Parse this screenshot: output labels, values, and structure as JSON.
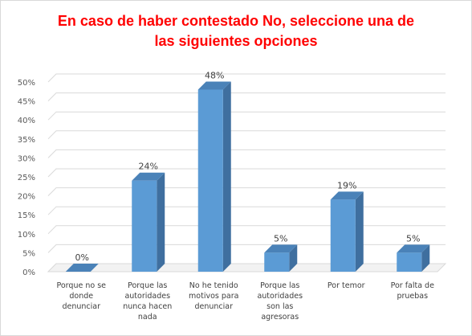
{
  "chart_data": {
    "type": "bar",
    "title": "En caso de haber contestado  No, seleccione una de\nlas siguientes opciones",
    "categories": [
      [
        "Porque no se",
        "donde",
        "denunciar"
      ],
      [
        "Porque las",
        "autoridades",
        "nunca hacen",
        "nada"
      ],
      [
        "No he tenido",
        "motivos para",
        "denunciar"
      ],
      [
        "Porque las",
        "autoridades",
        "son las",
        "agresoras"
      ],
      [
        "Por temor"
      ],
      [
        "Por falta de",
        "pruebas"
      ]
    ],
    "values": [
      0,
      24,
      48,
      5,
      19,
      5
    ],
    "data_labels": [
      "0%",
      "24%",
      "48%",
      "5%",
      "19%",
      "5%"
    ],
    "yticks": [
      "0%",
      "5%",
      "10%",
      "15%",
      "20%",
      "25%",
      "30%",
      "35%",
      "40%",
      "45%",
      "50%"
    ],
    "ylim": [
      0,
      50
    ],
    "grid": true,
    "style": "3d-column",
    "colors": {
      "bar_front": "#5b9bd5",
      "bar_side": "#3f6f9f",
      "bar_top": "#4a82b8",
      "grid": "#d9d9d9",
      "title": "#ff0000"
    }
  }
}
